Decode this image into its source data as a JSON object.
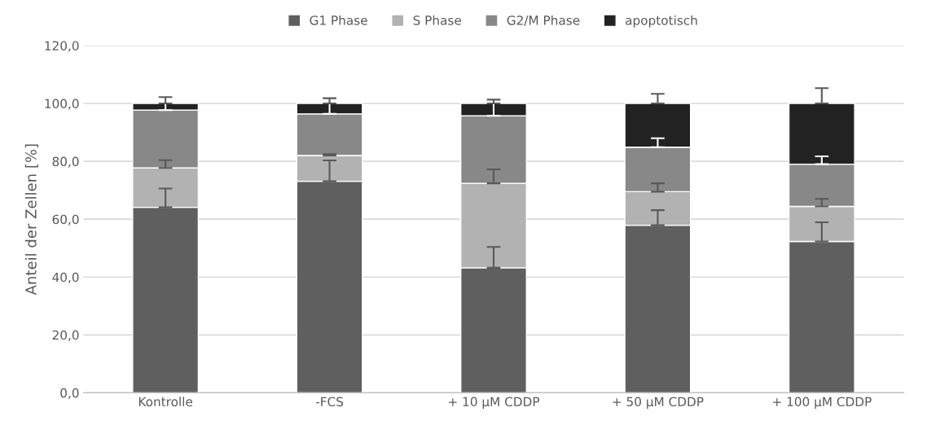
{
  "chart_data": {
    "type": "bar",
    "stacked": true,
    "ylabel": "Anteil der Zellen [%]",
    "categories": [
      "Kontrolle",
      "-FCS",
      "+ 10 µM CDDP",
      "+ 50 µM CDDP",
      "+ 100 µM CDDP"
    ],
    "series": [
      {
        "name": "G1 Phase",
        "color": "#5f5f5f",
        "values": [
          64.1,
          73.1,
          43.2,
          57.9,
          52.3
        ],
        "errors": [
          [
            64.1,
            70.6
          ],
          [
            73.1,
            80.3
          ],
          [
            43.2,
            50.4
          ],
          [
            57.9,
            63.1
          ],
          [
            52.3,
            58.9
          ]
        ]
      },
      {
        "name": "S Phase",
        "color": "#b2b2b2",
        "values": [
          13.6,
          8.9,
          29.2,
          11.6,
          12.1
        ],
        "errors": [
          [
            77.7,
            80.4
          ],
          [
            82.0,
            82.5
          ],
          [
            72.4,
            77.2
          ],
          [
            69.5,
            72.4
          ],
          [
            64.4,
            67.0
          ]
        ]
      },
      {
        "name": "G2/M Phase",
        "color": "#888888",
        "values": [
          20.0,
          14.4,
          23.3,
          15.4,
          14.6
        ],
        "errors": [
          [
            97.7,
            100.0
          ],
          [
            96.4,
            100.0
          ],
          [
            95.7,
            100.0
          ],
          [
            84.9,
            88.0
          ],
          [
            79.0,
            81.7
          ]
        ]
      },
      {
        "name": "apoptotisch",
        "color": "#222222",
        "values": [
          2.3,
          3.6,
          4.3,
          15.1,
          21.0
        ],
        "errors": [
          [
            100.0,
            102.2
          ],
          [
            100.0,
            101.8
          ],
          [
            100.0,
            101.3
          ],
          [
            100.0,
            103.3
          ],
          [
            100.0,
            105.3
          ]
        ]
      }
    ],
    "ylim": [
      0,
      120
    ],
    "yticks": [
      {
        "value": 0,
        "label": "0,0"
      },
      {
        "value": 20,
        "label": "20,0"
      },
      {
        "value": 40,
        "label": "40,0"
      },
      {
        "value": 60,
        "label": "60,0"
      },
      {
        "value": 80,
        "label": "80,0"
      },
      {
        "value": 100,
        "label": "100,0"
      },
      {
        "value": 120,
        "label": "120,0"
      }
    ],
    "grid": "y",
    "legend": "top"
  }
}
